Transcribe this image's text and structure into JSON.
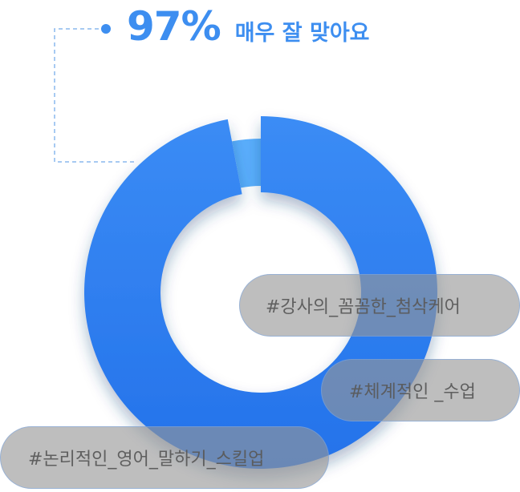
{
  "headline": {
    "percent": "97%",
    "label": "매우 잘 맞아요"
  },
  "colors": {
    "accent": "#3d8ef0",
    "main_segment": "#2a7ff0",
    "minor_segment": "#5aaefc",
    "tag_fill": "#969696"
  },
  "chart_data": {
    "type": "pie",
    "style": "donut",
    "categories": [
      "매우 잘 맞아요",
      ""
    ],
    "values": [
      97,
      3
    ],
    "title": "",
    "legend": "none",
    "annotations": [
      "97% 매우 잘 맞아요"
    ]
  },
  "tags": [
    {
      "text": "#강사의_꼼꼼한_첨삭케어"
    },
    {
      "text": "#체계적인 _수업"
    },
    {
      "text": "#논리적인_영어_말하기_스킬업"
    }
  ]
}
